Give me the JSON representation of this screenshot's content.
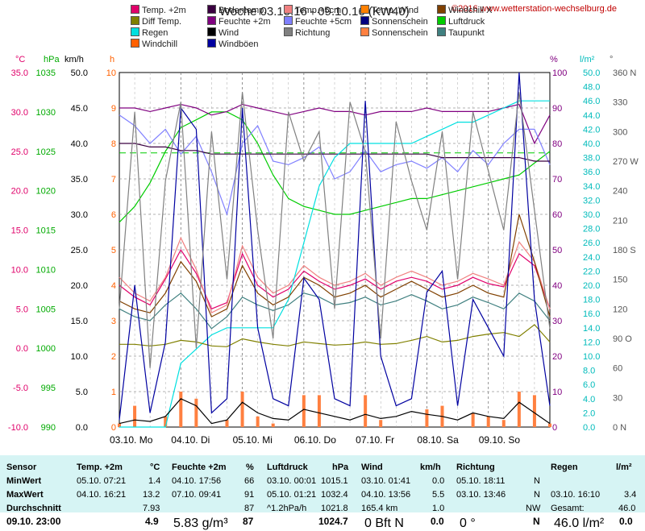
{
  "title": "Woche 03.10.16 - 09.10.16 (KW40)",
  "copyright": "©2016 www.wetterstation-wechselburg.de",
  "legend": [
    {
      "label": "Temp. +2m",
      "color": "#e0006a"
    },
    {
      "label": "Bodentemp.",
      "color": "#3a0040"
    },
    {
      "label": "Temp.+5cm",
      "color": "#f08080"
    },
    {
      "label": "Temp. Wind",
      "color": "#ff8000"
    },
    {
      "label": "Windchill X",
      "color": "#804000"
    },
    {
      "label": "Diff Temp.",
      "color": "#808000"
    },
    {
      "label": "Feuchte +2m",
      "color": "#800080"
    },
    {
      "label": "Feuchte +5cm",
      "color": "#8080ff"
    },
    {
      "label": "Sonnenschein",
      "color": "#000080"
    },
    {
      "label": "Luftdruck",
      "color": "#00cc00"
    },
    {
      "label": "Regen",
      "color": "#00e0e0"
    },
    {
      "label": "Wind",
      "color": "#000000"
    },
    {
      "label": "Richtung",
      "color": "#808080"
    },
    {
      "label": "Sonnenschein",
      "color": "#ff8040"
    },
    {
      "label": "Taupunkt",
      "color": "#408080"
    },
    {
      "label": "Windchill",
      "color": "#ff6000"
    },
    {
      "label": "Windböen",
      "color": "#0000a0"
    }
  ],
  "units": {
    "c": "°C",
    "hpa": "hPa",
    "kmh": "km/h",
    "h": "h",
    "pct": "%",
    "lm2": "l/m²",
    "deg": "°"
  },
  "chart_data": {
    "type": "line",
    "days": [
      "03.10.  Mo",
      "04.10.  Di",
      "05.10.  Mi",
      "06.10.  Do",
      "07.10.  Fr",
      "08.10.  Sa",
      "09.10.  So"
    ],
    "axes": {
      "temp_c": {
        "range": [
          -10,
          35
        ],
        "ticks": [
          "35.0",
          "30.0",
          "25.0",
          "20.0",
          "15.0",
          "10.0",
          "5.0",
          "0.0",
          "-5.0",
          "-10.0"
        ]
      },
      "pressure_hpa": {
        "range": [
          990,
          1035
        ],
        "ticks": [
          "1035",
          "1030",
          "1025",
          "1020",
          "1015",
          "1010",
          "1005",
          "1000",
          "995",
          "990"
        ]
      },
      "wind_kmh": {
        "range": [
          0,
          50
        ],
        "ticks": [
          "50.0",
          "45.0",
          "40.0",
          "35.0",
          "30.0",
          "25.0",
          "20.0",
          "15.0",
          "10.0",
          "5.0",
          "0.0"
        ]
      },
      "sun_h": {
        "range": [
          0,
          10
        ],
        "ticks": [
          "10",
          "9",
          "8",
          "7",
          "6",
          "5",
          "4",
          "3",
          "2",
          "1",
          "0"
        ]
      },
      "humidity_pct": {
        "range": [
          0,
          100
        ],
        "ticks": [
          "100",
          "90",
          "80",
          "70",
          "60",
          "50",
          "40",
          "30",
          "20",
          "10",
          "0"
        ]
      },
      "rain_lm2": {
        "range": [
          0,
          50
        ],
        "ticks": [
          "50.0",
          "48.0",
          "46.0",
          "44.0",
          "42.0",
          "40.0",
          "38.0",
          "36.0",
          "34.0",
          "32.0",
          "30.0",
          "28.0",
          "26.0",
          "24.0",
          "22.0",
          "20.0",
          "18.0",
          "16.0",
          "14.0",
          "12.0",
          "10.0",
          "8.0",
          "6.0",
          "4.0",
          "2.0",
          "0.0"
        ]
      },
      "direction_deg": {
        "range": [
          0,
          360
        ],
        "ticks": [
          "360 N",
          "330",
          "300",
          "270 W",
          "240",
          "210",
          "180 S",
          "150",
          "120",
          "90 O",
          "60",
          "30",
          "0 N"
        ]
      }
    },
    "series": [
      {
        "name": "Temp. +2m",
        "color": "#e0006a",
        "axis": "temp_c",
        "values": [
          8.0,
          6.5,
          5.5,
          8.8,
          12.5,
          9.5,
          5.0,
          5.8,
          12.0,
          8.0,
          6.5,
          7.5,
          9.8,
          8.5,
          7.5,
          8.0,
          8.8,
          7.5,
          8.5,
          9.0,
          8.5,
          7.5,
          8.0,
          9.0,
          8.2,
          7.8,
          12.0,
          10.5,
          5.0
        ]
      },
      {
        "name": "Temp.+5cm",
        "color": "#f08080",
        "axis": "temp_c",
        "values": [
          9.0,
          7.0,
          6.0,
          9.0,
          14.0,
          10.0,
          4.5,
          5.5,
          13.0,
          9.0,
          7.0,
          8.0,
          10.5,
          9.0,
          8.0,
          8.5,
          9.5,
          8.0,
          9.0,
          9.8,
          9.0,
          8.0,
          8.5,
          9.5,
          8.8,
          8.0,
          13.5,
          11.0,
          5.0
        ]
      },
      {
        "name": "Taupunkt",
        "color": "#408080",
        "axis": "temp_c",
        "values": [
          5.0,
          4.0,
          3.5,
          5.5,
          7.0,
          5.0,
          2.5,
          4.0,
          6.5,
          5.5,
          4.8,
          5.5,
          7.0,
          6.5,
          5.5,
          5.8,
          6.5,
          5.5,
          6.0,
          6.8,
          6.0,
          5.0,
          5.5,
          6.5,
          5.8,
          5.0,
          7.0,
          6.0,
          3.5
        ]
      },
      {
        "name": "Luftdruck",
        "color": "#00cc00",
        "axis": "pressure_hpa",
        "values": [
          1016,
          1018,
          1021,
          1025,
          1028,
          1029,
          1030,
          1030,
          1029,
          1026,
          1022,
          1019,
          1018,
          1017.5,
          1017,
          1017,
          1017.5,
          1018,
          1018.5,
          1019,
          1019,
          1019.5,
          1020,
          1020.5,
          1021,
          1021.5,
          1022,
          1023.5,
          1025
        ]
      },
      {
        "name": "Feuchte +2m",
        "color": "#800080",
        "axis": "humidity_pct",
        "values": [
          90,
          90,
          89,
          90,
          91,
          90,
          88,
          89,
          91,
          90,
          89,
          88,
          89,
          90,
          89,
          89,
          88,
          89,
          89,
          89,
          90,
          89,
          89,
          89,
          89,
          90,
          91,
          80,
          88
        ]
      },
      {
        "name": "Feuchte +5cm",
        "color": "#8080ff",
        "axis": "humidity_pct",
        "values": [
          88,
          85,
          80,
          84,
          77,
          82,
          72,
          60,
          80,
          85,
          75,
          74,
          76,
          79,
          70,
          72,
          78,
          72,
          74,
          75,
          73,
          76,
          72,
          78,
          74,
          80,
          84,
          84,
          74
        ]
      },
      {
        "name": "Bodentemp.",
        "color": "#3a0040",
        "axis": "humidity_pct",
        "values": [
          80,
          80,
          79,
          79,
          78,
          78,
          77,
          77,
          77,
          77,
          77,
          77,
          77,
          77,
          77,
          77,
          77,
          77,
          77,
          77,
          77,
          76,
          76,
          76,
          76,
          76,
          76,
          75,
          75
        ]
      },
      {
        "name": "Regen",
        "color": "#00e0e0",
        "axis": "rain_lm2",
        "values": [
          0,
          0,
          0,
          0,
          9,
          11,
          13,
          14,
          14,
          14,
          14,
          18,
          26,
          34,
          38,
          40,
          40,
          40,
          40,
          40,
          41,
          42,
          43,
          43,
          44,
          45,
          46,
          46,
          46
        ]
      },
      {
        "name": "Diff Temp.",
        "color": "#808000",
        "axis": "temp_c",
        "values": [
          0.5,
          0.5,
          0.3,
          0.5,
          1.0,
          0.8,
          0.3,
          0.2,
          1.2,
          0.8,
          0.5,
          0.3,
          0.8,
          0.6,
          0.4,
          0.5,
          0.8,
          0.5,
          0.6,
          1.0,
          1.5,
          0.8,
          1.0,
          1.5,
          1.8,
          2.0,
          1.5,
          3.0,
          0.8
        ]
      },
      {
        "name": "Windchill X",
        "color": "#804000",
        "axis": "temp_c",
        "values": [
          6.0,
          5.0,
          4.5,
          7.0,
          11.0,
          8.5,
          4.0,
          5.0,
          10.5,
          7.0,
          5.5,
          6.5,
          9.0,
          8.0,
          6.5,
          7.0,
          8.0,
          6.5,
          7.5,
          8.5,
          7.5,
          6.5,
          7.0,
          8.0,
          7.0,
          6.5,
          17.0,
          11.0,
          4.0
        ]
      },
      {
        "name": "Wind",
        "color": "#000000",
        "axis": "wind_kmh",
        "values": [
          0.5,
          1.0,
          0.8,
          1.5,
          4.0,
          3.0,
          0.5,
          1.0,
          3.5,
          2.0,
          1.2,
          1.0,
          2.5,
          2.0,
          1.5,
          1.0,
          1.8,
          1.2,
          1.5,
          2.2,
          1.8,
          1.5,
          1.0,
          2.0,
          1.5,
          1.2,
          3.5,
          2.0,
          0.5
        ]
      },
      {
        "name": "Windböen",
        "color": "#0000a0",
        "axis": "wind_kmh",
        "values": [
          1,
          20,
          2,
          12,
          45,
          42,
          2,
          4,
          45,
          14,
          4,
          3,
          21,
          18,
          4,
          3,
          46,
          10,
          3,
          4,
          19,
          22,
          3,
          18,
          14,
          10,
          50,
          18,
          3
        ]
      },
      {
        "name": "Richtung",
        "color": "#808080",
        "axis": "direction_deg",
        "values": [
          120,
          320,
          60,
          250,
          330,
          80,
          300,
          150,
          340,
          200,
          90,
          320,
          270,
          300,
          120,
          330,
          280,
          90,
          310,
          250,
          200,
          300,
          150,
          320,
          260,
          200,
          340,
          220,
          100
        ]
      }
    ],
    "sunshine_bars": {
      "color": "#ff8040",
      "axis": "sun_h",
      "values": [
        0.1,
        0.6,
        0,
        0.3,
        1.0,
        0.8,
        0,
        0.2,
        1.0,
        0.3,
        0.1,
        0,
        0.9,
        0.9,
        0,
        0,
        0.9,
        0.2,
        0,
        0,
        0.5,
        0.6,
        0,
        0.4,
        0.3,
        0.2,
        1.0,
        0.9,
        0.1
      ]
    },
    "reference_line": {
      "axis": "temp_c",
      "value": 24.8,
      "color": "#00cc00"
    }
  },
  "table": {
    "headers": [
      "Sensor",
      "Temp. +2m",
      "°C",
      "Feuchte +2m",
      "%",
      "Luftdruck",
      "hPa",
      "Wind",
      "km/h",
      "Richtung",
      "Regen",
      "l/m²"
    ],
    "rows": [
      {
        "label": "MinWert",
        "temp_time": "05.10.  07:21",
        "temp": "1.4",
        "hum_time": "04.10.  17:56",
        "hum": "66",
        "press_time": "03.10.  00:01",
        "press": "1015.1",
        "wind_time": "03.10.  01:41",
        "wind": "0.0",
        "dir_time": "05.10.  18:11",
        "dir": "N",
        "rain_time": "",
        "rain": ""
      },
      {
        "label": "MaxWert",
        "temp_time": "04.10.  16:21",
        "temp": "13.2",
        "hum_time": "07.10.  09:41",
        "hum": "91",
        "press_time": "05.10.  01:21",
        "press": "1032.4",
        "wind_time": "04.10.  13:56",
        "wind": "5.5",
        "dir_time": "03.10.  13:46",
        "dir": "N",
        "rain_time": "03.10.  16:10",
        "rain": "3.4"
      },
      {
        "label": "Durchschnitt",
        "temp_time": "",
        "temp": "7.93",
        "hum_time": "",
        "hum": "87",
        "press_time": "^1.2hPa/h",
        "press": "1021.8",
        "wind_time": "165.4 km",
        "wind": "1.0",
        "dir_time": "",
        "dir": "NW",
        "rain_time": "Gesamt:",
        "rain": "46.0"
      }
    ],
    "current": {
      "label": "09.10. 23:00",
      "temp": "4.9",
      "hum_extra": "5.83 g/m³",
      "hum": "87",
      "press": "1024.7",
      "wind_extra": "0 Bft N",
      "wind": "0.0",
      "dir_extra": "0 °",
      "dir": "N",
      "rain_extra": "46.0 l/m²",
      "rain": "0.0"
    }
  }
}
